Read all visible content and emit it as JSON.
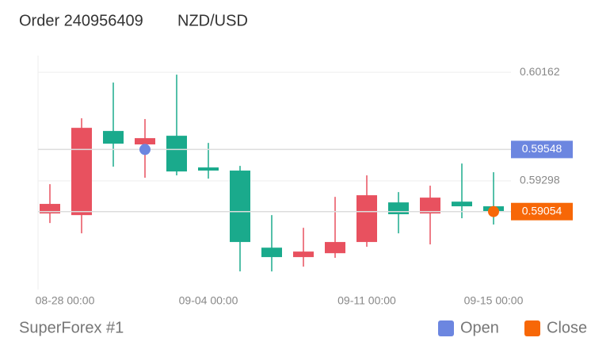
{
  "chart_data": {
    "type": "candlestick",
    "title": "Order 240956409",
    "subtitle": "NZD/USD",
    "source": "SuperForex #1",
    "up_color": "#e8515f",
    "down_color": "#1aaa8c",
    "categories": [
      "08-28 00:00",
      null,
      null,
      null,
      null,
      "09-04 00:00",
      null,
      null,
      null,
      null,
      "09-11 00:00",
      null,
      null,
      null,
      "09-15 00:00"
    ],
    "open": [
      0.59039,
      0.59026,
      0.59695,
      0.59588,
      0.59657,
      0.59405,
      0.5938,
      0.58767,
      0.58692,
      0.58723,
      0.58812,
      0.59127,
      0.59039,
      0.59133,
      0.59096
    ],
    "high": [
      0.59272,
      0.59796,
      0.6008,
      0.5979,
      0.60143,
      0.596,
      0.59417,
      0.59026,
      0.58925,
      0.59171,
      0.59342,
      0.59209,
      0.5926,
      0.59436,
      0.59367
    ],
    "low": [
      0.58963,
      0.58881,
      0.59411,
      0.59323,
      0.59342,
      0.59316,
      0.58578,
      0.58578,
      0.58616,
      0.58686,
      0.58774,
      0.58881,
      0.58793,
      0.59001,
      0.58951
    ],
    "close": [
      0.59115,
      0.5972,
      0.59594,
      0.59638,
      0.59373,
      0.5938,
      0.58812,
      0.58692,
      0.58736,
      0.58812,
      0.59184,
      0.59033,
      0.59165,
      0.59096,
      0.59054
    ],
    "markers": [
      {
        "name": "Open",
        "value": 0.59548,
        "index": 3,
        "color": "#6c86e0"
      },
      {
        "name": "Close",
        "value": 0.59054,
        "index": 14,
        "color": "#f76707"
      }
    ],
    "ylim": [
      0.58434,
      0.60295
    ],
    "yticks": [
      0.60162,
      0.59298
    ],
    "grid": true
  }
}
